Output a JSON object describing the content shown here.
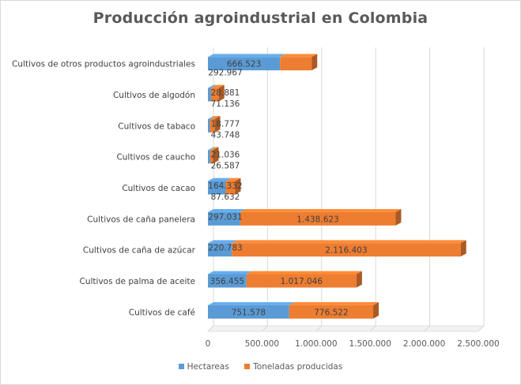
{
  "chart_data": {
    "type": "bar",
    "orientation": "horizontal",
    "stacked": true,
    "title": "Producción  agroindustrial  en Colombia",
    "categories": [
      "Cultivos de café",
      "Cultivos de palma de aceite",
      "Cultivos de caña de azúcar",
      "Cultivos de caña panelera",
      "Cultivos de cacao",
      "Cultivos de caucho",
      "Cultivos de tabaco",
      "Cultivos de algodón",
      "Cultivos de otros productos agroindustriales"
    ],
    "series": [
      {
        "name": "Hectareas",
        "color": "#5b9bd5",
        "values": [
          751578,
          356455,
          220783,
          297031,
          164332,
          21036,
          18777,
          28881,
          666523
        ],
        "labels": [
          "751.578",
          "356.455",
          "220.783",
          "297.031",
          "164.332",
          "21.036",
          "18.777",
          "28.881",
          "666.523"
        ]
      },
      {
        "name": "Toneladas producidas",
        "color": "#ed7d31",
        "values": [
          776522,
          1017046,
          2116403,
          1438623,
          87632,
          26587,
          43748,
          71136,
          292967
        ],
        "labels": [
          "776.522",
          "1.017.046",
          "2.116.403",
          "1.438.623",
          "87.632",
          "26.587",
          "43.748",
          "71.136",
          "292.967"
        ]
      }
    ],
    "xlim": [
      0,
      2500000
    ],
    "xticks": [
      0,
      500000,
      1000000,
      1500000,
      2000000,
      2500000
    ],
    "xtick_labels": [
      "0",
      "500.000",
      "1.000.000",
      "1.500.000",
      "2.000.000",
      "2.500.000"
    ],
    "grid": true,
    "legend_position": "bottom"
  }
}
